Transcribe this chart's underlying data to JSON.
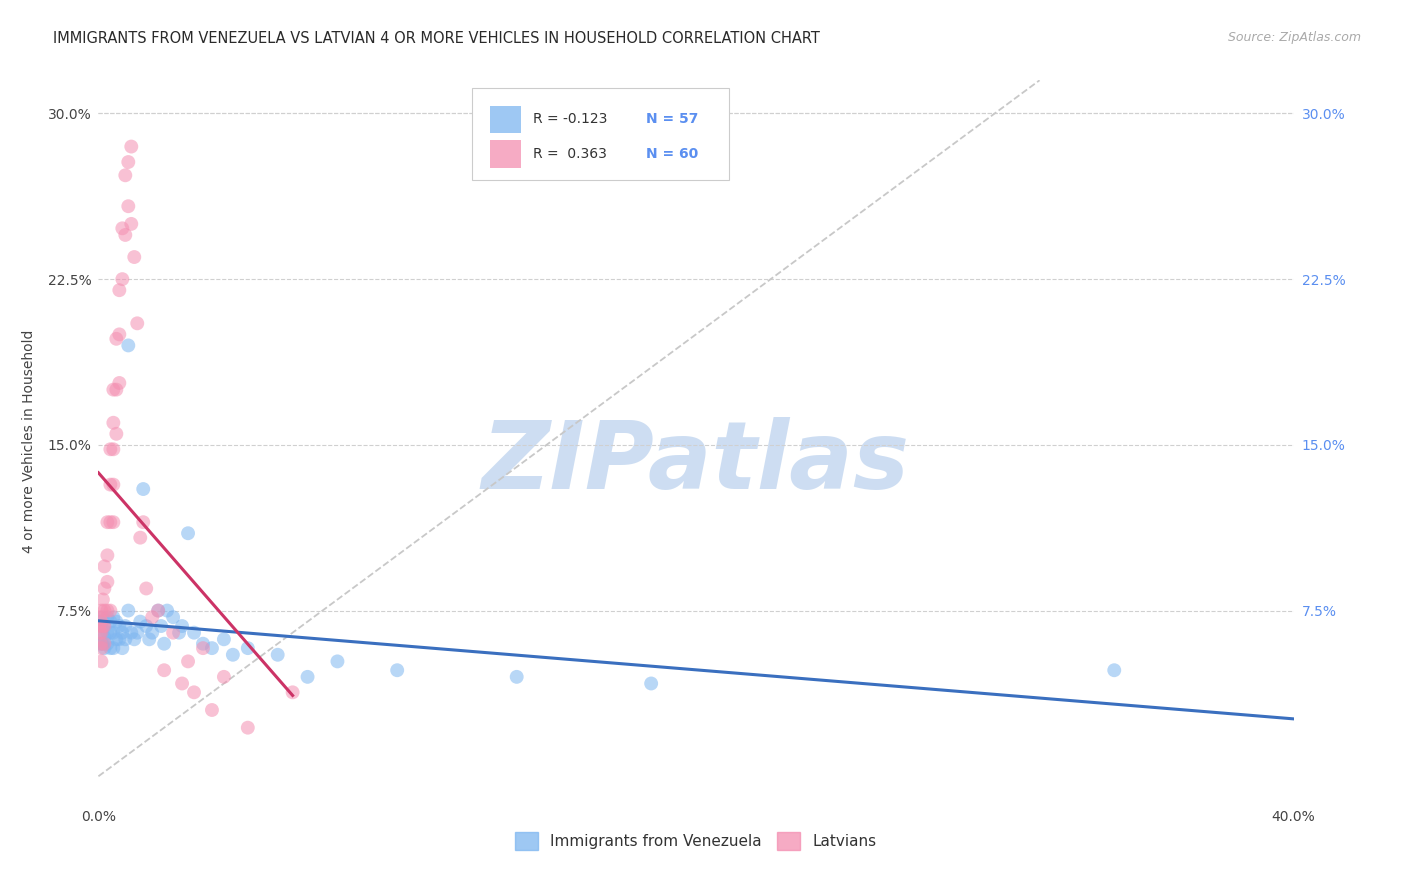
{
  "title": "IMMIGRANTS FROM VENEZUELA VS LATVIAN 4 OR MORE VEHICLES IN HOUSEHOLD CORRELATION CHART",
  "source": "Source: ZipAtlas.com",
  "ylabel": "4 or more Vehicles in Household",
  "xlim": [
    0.0,
    0.4
  ],
  "ylim": [
    -0.012,
    0.315
  ],
  "ytick_vals": [
    0.0,
    0.075,
    0.15,
    0.225,
    0.3
  ],
  "ytick_labels": [
    "",
    "7.5%",
    "15.0%",
    "22.5%",
    "30.0%"
  ],
  "xtick_vals": [
    0.0,
    0.05,
    0.1,
    0.15,
    0.2,
    0.25,
    0.3,
    0.35,
    0.4
  ],
  "xtick_labels": [
    "0.0%",
    "",
    "",
    "",
    "",
    "",
    "",
    "",
    "40.0%"
  ],
  "blue_scatter_color": "#7EB6F0",
  "pink_scatter_color": "#F48FB1",
  "blue_line_color": "#3A6FBF",
  "pink_line_color": "#CC3366",
  "diagonal_color": "#C8C8C8",
  "right_tick_color": "#5B8FF0",
  "n_color": "#5B8FF0",
  "r_color": "#333333",
  "legend_r1": "R = -0.123",
  "legend_n1": "N = 57",
  "legend_r2": "R =  0.363",
  "legend_n2": "N = 60",
  "venezuela_x": [
    0.0005,
    0.001,
    0.001,
    0.001,
    0.0015,
    0.0015,
    0.002,
    0.002,
    0.002,
    0.003,
    0.003,
    0.003,
    0.004,
    0.004,
    0.004,
    0.005,
    0.005,
    0.005,
    0.006,
    0.006,
    0.007,
    0.007,
    0.008,
    0.008,
    0.009,
    0.009,
    0.01,
    0.01,
    0.011,
    0.012,
    0.013,
    0.014,
    0.015,
    0.016,
    0.017,
    0.018,
    0.02,
    0.021,
    0.022,
    0.023,
    0.025,
    0.027,
    0.028,
    0.03,
    0.032,
    0.035,
    0.038,
    0.042,
    0.045,
    0.05,
    0.06,
    0.07,
    0.08,
    0.1,
    0.14,
    0.185,
    0.34
  ],
  "venezuela_y": [
    0.07,
    0.068,
    0.065,
    0.06,
    0.072,
    0.06,
    0.068,
    0.063,
    0.058,
    0.072,
    0.065,
    0.06,
    0.07,
    0.065,
    0.058,
    0.072,
    0.065,
    0.058,
    0.07,
    0.062,
    0.068,
    0.062,
    0.065,
    0.058,
    0.068,
    0.062,
    0.195,
    0.075,
    0.065,
    0.062,
    0.065,
    0.07,
    0.13,
    0.068,
    0.062,
    0.065,
    0.075,
    0.068,
    0.06,
    0.075,
    0.072,
    0.065,
    0.068,
    0.11,
    0.065,
    0.06,
    0.058,
    0.062,
    0.055,
    0.058,
    0.055,
    0.045,
    0.052,
    0.048,
    0.045,
    0.042,
    0.048
  ],
  "latvian_x": [
    0.0003,
    0.0005,
    0.0005,
    0.0008,
    0.001,
    0.001,
    0.001,
    0.001,
    0.001,
    0.0015,
    0.0015,
    0.002,
    0.002,
    0.002,
    0.002,
    0.002,
    0.003,
    0.003,
    0.003,
    0.003,
    0.004,
    0.004,
    0.004,
    0.004,
    0.005,
    0.005,
    0.005,
    0.005,
    0.005,
    0.006,
    0.006,
    0.006,
    0.007,
    0.007,
    0.007,
    0.008,
    0.008,
    0.009,
    0.009,
    0.01,
    0.01,
    0.011,
    0.011,
    0.012,
    0.013,
    0.014,
    0.015,
    0.016,
    0.018,
    0.02,
    0.022,
    0.025,
    0.028,
    0.03,
    0.032,
    0.035,
    0.038,
    0.042,
    0.05,
    0.065
  ],
  "latvian_y": [
    0.068,
    0.072,
    0.065,
    0.06,
    0.075,
    0.07,
    0.065,
    0.058,
    0.052,
    0.08,
    0.068,
    0.095,
    0.085,
    0.075,
    0.068,
    0.06,
    0.115,
    0.1,
    0.088,
    0.075,
    0.148,
    0.132,
    0.115,
    0.075,
    0.175,
    0.16,
    0.148,
    0.132,
    0.115,
    0.198,
    0.175,
    0.155,
    0.22,
    0.2,
    0.178,
    0.248,
    0.225,
    0.272,
    0.245,
    0.278,
    0.258,
    0.285,
    0.25,
    0.235,
    0.205,
    0.108,
    0.115,
    0.085,
    0.072,
    0.075,
    0.048,
    0.065,
    0.042,
    0.052,
    0.038,
    0.058,
    0.03,
    0.045,
    0.022,
    0.038
  ]
}
